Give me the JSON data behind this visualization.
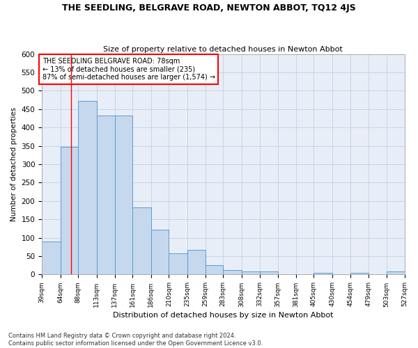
{
  "title": "THE SEEDLING, BELGRAVE ROAD, NEWTON ABBOT, TQ12 4JS",
  "subtitle": "Size of property relative to detached houses in Newton Abbot",
  "xlabel": "Distribution of detached houses by size in Newton Abbot",
  "ylabel": "Number of detached properties",
  "footer_line1": "Contains HM Land Registry data © Crown copyright and database right 2024.",
  "footer_line2": "Contains public sector information licensed under the Open Government Licence v3.0.",
  "annotation_title": "THE SEEDLING BELGRAVE ROAD: 78sqm",
  "annotation_line1": "← 13% of detached houses are smaller (235)",
  "annotation_line2": "87% of semi-detached houses are larger (1,574) →",
  "bar_color": "#c5d8ed",
  "bar_edge_color": "#5b9bd5",
  "red_line_x": 78,
  "bins": [
    39,
    64,
    88,
    113,
    137,
    161,
    186,
    210,
    235,
    259,
    283,
    308,
    332,
    357,
    381,
    405,
    430,
    454,
    479,
    503,
    527
  ],
  "counts": [
    90,
    348,
    472,
    432,
    432,
    182,
    123,
    57,
    68,
    25,
    12,
    8,
    8,
    0,
    0,
    5,
    0,
    5,
    0,
    8
  ],
  "bg_color": "#ffffff",
  "plot_bg_color": "#e8eef7",
  "grid_color": "#c8d4e4",
  "ylim": [
    0,
    600
  ],
  "yticks": [
    0,
    50,
    100,
    150,
    200,
    250,
    300,
    350,
    400,
    450,
    500,
    550,
    600
  ]
}
